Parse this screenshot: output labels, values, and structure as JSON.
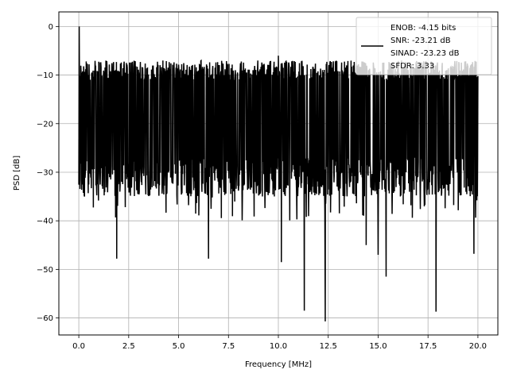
{
  "chart_data": {
    "type": "line",
    "title": "",
    "xlabel": "Frequency [MHz]",
    "ylabel": "PSD [dB]",
    "xlim": [
      -1.0,
      21.0
    ],
    "ylim": [
      -63.5,
      3.0
    ],
    "x_ticks": [
      0.0,
      2.5,
      5.0,
      7.5,
      10.0,
      12.5,
      15.0,
      17.5,
      20.0
    ],
    "x_tick_labels": [
      "0.0",
      "2.5",
      "5.0",
      "7.5",
      "10.0",
      "12.5",
      "15.0",
      "17.5",
      "20.0"
    ],
    "y_ticks": [
      0,
      -10,
      -20,
      -30,
      -40,
      -50,
      -60
    ],
    "y_tick_labels": [
      "0",
      "−10",
      "−20",
      "−30",
      "−40",
      "−50",
      "−60"
    ],
    "grid": true,
    "legend_position": "top-right",
    "legend": {
      "lines": [
        "ENOB: -4.15 bits",
        "SNR: -23.21 dB",
        "SINAD: -23.23 dB",
        "SFDR: 3.33"
      ]
    },
    "series": [
      {
        "color": "#000000",
        "band_min": -30.0,
        "band_max": -9.0,
        "deep_dips": [
          {
            "x": 1.9,
            "y": -47.8
          },
          {
            "x": 6.5,
            "y": -47.8
          },
          {
            "x": 10.15,
            "y": -48.5
          },
          {
            "x": 11.3,
            "y": -58.5
          },
          {
            "x": 12.35,
            "y": -60.7
          },
          {
            "x": 14.4,
            "y": -45.0
          },
          {
            "x": 15.0,
            "y": -47.0
          },
          {
            "x": 15.4,
            "y": -51.5
          },
          {
            "x": 17.9,
            "y": -58.7
          },
          {
            "x": 19.8,
            "y": -46.8
          }
        ],
        "peaks": [
          {
            "x": 0.02,
            "y": 0.0
          },
          {
            "x": 10.0,
            "y": -6.0
          }
        ]
      }
    ]
  }
}
